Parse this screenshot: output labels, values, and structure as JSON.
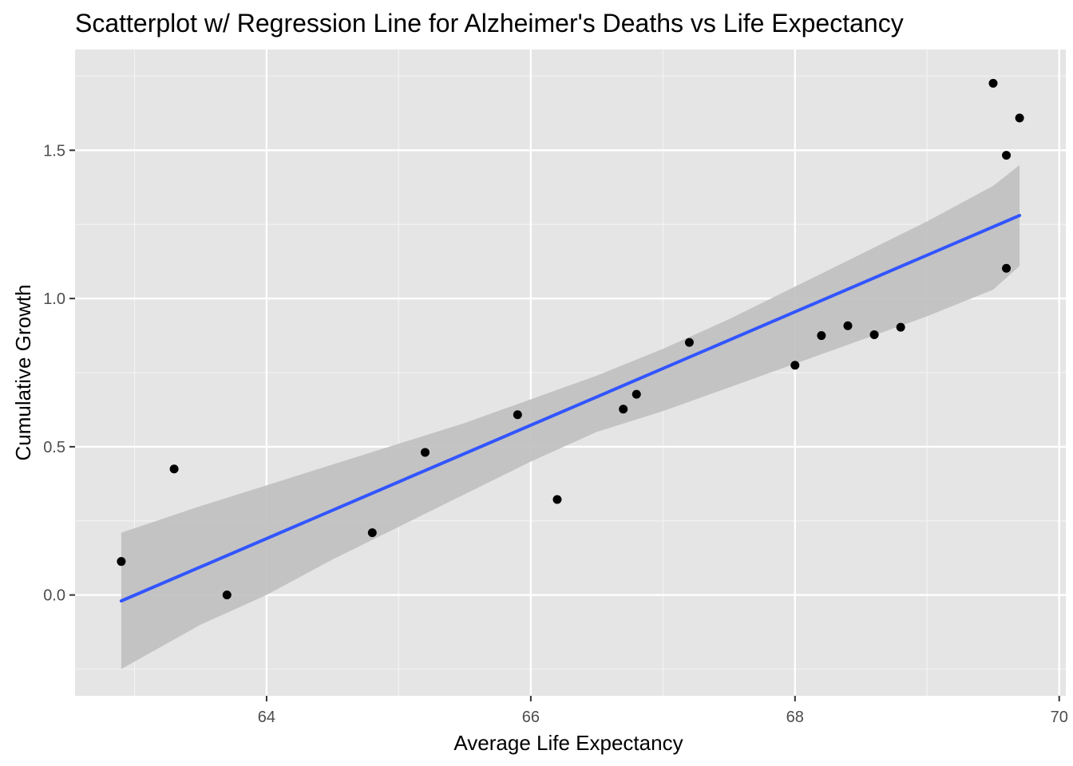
{
  "chart_data": {
    "type": "scatter",
    "title": "Scatterplot w/ Regression Line for Alzheimer's Deaths vs Life Expectancy",
    "xlabel": "Average Life Expectancy",
    "ylabel": "Cumulative Growth",
    "xlim": [
      62.55,
      70.05
    ],
    "ylim": [
      -0.34,
      1.84
    ],
    "xticks": [
      64,
      66,
      68,
      70
    ],
    "xtick_labels": [
      "64",
      "66",
      "68",
      "70"
    ],
    "yticks": [
      0.0,
      0.5,
      1.0,
      1.5
    ],
    "ytick_labels": [
      "0.0",
      "0.5",
      "1.0",
      "1.5"
    ],
    "grid": true,
    "legend": "none",
    "colors": {
      "panel": "#e5e5e5",
      "grid_major": "#ffffff",
      "grid_minor": "#f2f2f2",
      "points": "#000000",
      "regression_line": "#3255ff",
      "confidence_band": "#bfbfbf",
      "tick_label": "#4d4d4d",
      "tick_mark": "#333333"
    },
    "points": [
      {
        "x": 62.9,
        "y": 0.113
      },
      {
        "x": 63.3,
        "y": 0.425
      },
      {
        "x": 63.7,
        "y": 0.0
      },
      {
        "x": 64.8,
        "y": 0.21
      },
      {
        "x": 65.2,
        "y": 0.481
      },
      {
        "x": 65.9,
        "y": 0.608
      },
      {
        "x": 66.2,
        "y": 0.322
      },
      {
        "x": 66.7,
        "y": 0.627
      },
      {
        "x": 66.8,
        "y": 0.677
      },
      {
        "x": 67.2,
        "y": 0.852
      },
      {
        "x": 68.0,
        "y": 0.775
      },
      {
        "x": 68.2,
        "y": 0.875
      },
      {
        "x": 68.4,
        "y": 0.908
      },
      {
        "x": 68.6,
        "y": 0.878
      },
      {
        "x": 68.8,
        "y": 0.903
      },
      {
        "x": 69.5,
        "y": 1.726
      },
      {
        "x": 69.6,
        "y": 1.483
      },
      {
        "x": 69.6,
        "y": 1.102
      },
      {
        "x": 69.7,
        "y": 1.609
      }
    ],
    "regression_line": [
      {
        "x": 62.9,
        "y": -0.02
      },
      {
        "x": 69.7,
        "y": 1.28
      }
    ],
    "confidence_band": {
      "x": [
        62.9,
        63.5,
        64.0,
        64.5,
        65.0,
        65.5,
        66.0,
        66.5,
        67.0,
        67.5,
        68.0,
        68.5,
        69.0,
        69.5,
        69.7
      ],
      "upper": [
        0.21,
        0.3,
        0.37,
        0.44,
        0.51,
        0.58,
        0.66,
        0.74,
        0.83,
        0.93,
        1.04,
        1.15,
        1.26,
        1.38,
        1.45
      ],
      "lower": [
        -0.25,
        -0.1,
        0.0,
        0.12,
        0.23,
        0.34,
        0.45,
        0.55,
        0.62,
        0.7,
        0.78,
        0.86,
        0.94,
        1.03,
        1.11
      ]
    }
  }
}
